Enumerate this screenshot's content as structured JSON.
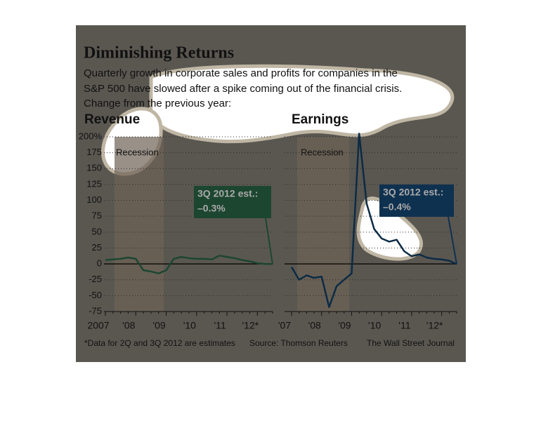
{
  "header": {
    "title": "Diminishing Returns",
    "subtitle": [
      "Quarterly growth in corporate sales and profits for companies in the",
      "S&P 500 have slowed after a spike coming out of the financial crisis.",
      "Change from the previous year:"
    ]
  },
  "chart_data": [
    {
      "type": "line",
      "title": "Revenue",
      "band_label": "Recession",
      "categories": [
        "2007",
        null,
        null,
        null,
        "'08",
        null,
        null,
        null,
        "'09",
        null,
        null,
        null,
        "'10",
        null,
        null,
        null,
        "'11",
        null,
        null,
        null,
        "'12*",
        null,
        null
      ],
      "series": [
        {
          "name": "Revenue",
          "color": "#1c4630",
          "values": [
            6,
            7,
            8,
            10,
            8,
            -10,
            -12,
            -15,
            -10,
            8,
            11,
            9,
            8,
            8,
            7,
            13,
            11,
            9,
            6,
            4,
            1,
            0,
            -0.3
          ]
        }
      ],
      "ylim": [
        -75,
        200
      ],
      "yticks": [
        {
          "value": 200,
          "label": "200%"
        },
        175,
        150,
        125,
        100,
        75,
        50,
        25,
        0,
        -25,
        -50,
        -75
      ],
      "grid": true,
      "annotation": [
        "3Q 2012 est.:",
        "–0.3%"
      ],
      "annotation_color": "#1c4630"
    },
    {
      "type": "line",
      "title": "Earnings",
      "band_label": "Recession",
      "categories": [
        "'07",
        null,
        null,
        null,
        "'08",
        null,
        null,
        null,
        "'09",
        null,
        null,
        null,
        "'10",
        null,
        null,
        null,
        "'11",
        null,
        null,
        null,
        "'12*",
        null,
        null
      ],
      "series": [
        {
          "name": "Earnings",
          "color": "#0c2b45",
          "values": [
            -5,
            -25,
            -18,
            -22,
            -20,
            -68,
            -35,
            -25,
            -15,
            205,
            95,
            55,
            40,
            35,
            38,
            20,
            12,
            15,
            10,
            8,
            7,
            5,
            -0.4
          ]
        }
      ],
      "ylim": [
        -75,
        200
      ],
      "grid": true,
      "annotation": [
        "3Q 2012 est.:",
        "–0.4%"
      ],
      "annotation_color": "#0f3150"
    }
  ],
  "footer": {
    "note": "*Data for 2Q and 3Q 2012 are estimates",
    "source": "Source: Thomson Reuters",
    "credit": "The Wall Street Journal"
  }
}
